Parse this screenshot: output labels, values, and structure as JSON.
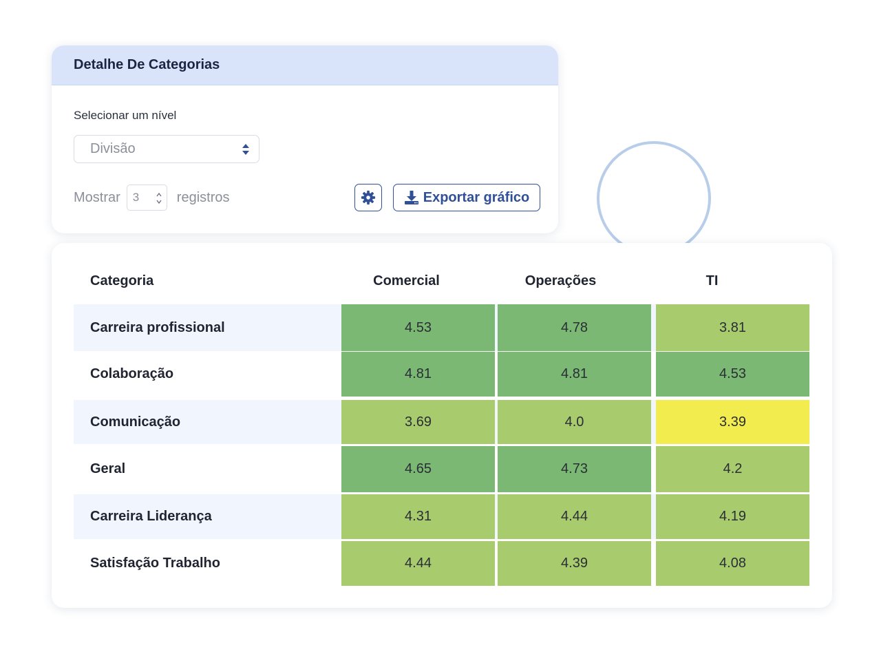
{
  "panel": {
    "title": "Detalhe De Categorias",
    "level_label": "Selecionar um nível",
    "level_value": "Divisão",
    "show_label": "Mostrar",
    "records_count": "3",
    "records_label": "registros",
    "settings_icon": "gear-icon",
    "export_icon": "download-icon",
    "export_label": "Exportar gráfico"
  },
  "table": {
    "headers": [
      "Categoria",
      "Comercial",
      "Operações",
      "TI"
    ],
    "rows": [
      {
        "label": "Carreira profissional",
        "values": [
          "4.53",
          "4.78",
          "3.81"
        ],
        "colors": [
          "#7ab873",
          "#7ab873",
          "#a8cb6e"
        ]
      },
      {
        "label": "Colaboração",
        "values": [
          "4.81",
          "4.81",
          "4.53"
        ],
        "colors": [
          "#7ab873",
          "#7ab873",
          "#7ab873"
        ]
      },
      {
        "label": "Comunicação",
        "values": [
          "3.69",
          "4.0",
          "3.39"
        ],
        "colors": [
          "#a8cb6e",
          "#a8cb6e",
          "#f3ec4f"
        ]
      },
      {
        "label": "Geral",
        "values": [
          "4.65",
          "4.73",
          "4.2"
        ],
        "colors": [
          "#7ab873",
          "#7ab873",
          "#a8cb6e"
        ]
      },
      {
        "label": "Carreira Liderança",
        "values": [
          "4.31",
          "4.44",
          "4.19"
        ],
        "colors": [
          "#a8cb6e",
          "#a8cb6e",
          "#a8cb6e"
        ]
      },
      {
        "label": "Satisfação Trabalho",
        "values": [
          "4.44",
          "4.39",
          "4.08"
        ],
        "colors": [
          "#a8cb6e",
          "#a8cb6e",
          "#a8cb6e"
        ]
      }
    ]
  }
}
